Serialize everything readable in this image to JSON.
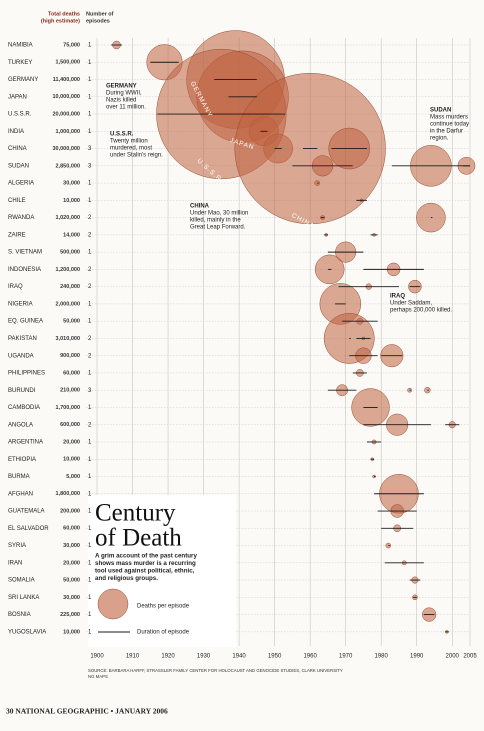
{
  "chart_data": {
    "type": "timeline-bubble",
    "title_lines": [
      "Century",
      "of Death"
    ],
    "subtitle_lines": [
      "A grim account of the past century",
      "shows mass murder is a recurring",
      "tool used against political, ethnic,",
      "and religious groups."
    ],
    "header_deaths": [
      "Total deaths",
      "(high estimate)"
    ],
    "header_episodes": [
      "Number of",
      "episodes"
    ],
    "color": "#c0623f",
    "line_color": "#1a1a1a",
    "label_color": "#8a2a1a",
    "xlim": [
      1900,
      2005
    ],
    "xticks": [
      1900,
      1910,
      1920,
      1930,
      1940,
      1950,
      1960,
      1970,
      1980,
      1990,
      2000,
      2005
    ],
    "grid": true,
    "rows": [
      {
        "name": "NAMIBIA",
        "deaths": 75000,
        "deaths_label": "75,000",
        "episodes_count": 1,
        "episodes": [
          {
            "start": 1904,
            "end": 1907
          }
        ]
      },
      {
        "name": "TURKEY",
        "deaths": 1500000,
        "deaths_label": "1,500,000",
        "episodes_count": 1,
        "episodes": [
          {
            "start": 1915,
            "end": 1923
          }
        ]
      },
      {
        "name": "GERMANY",
        "deaths": 11400000,
        "deaths_label": "11,400,000",
        "episodes_count": 1,
        "episodes": [
          {
            "start": 1933,
            "end": 1945
          }
        ]
      },
      {
        "name": "JAPAN",
        "deaths": 10000000,
        "deaths_label": "10,000,000",
        "episodes_count": 1,
        "episodes": [
          {
            "start": 1937,
            "end": 1945
          }
        ]
      },
      {
        "name": "U.S.S.R.",
        "deaths": 20000000,
        "deaths_label": "20,000,000",
        "episodes_count": 1,
        "episodes": [
          {
            "start": 1917,
            "end": 1953
          }
        ]
      },
      {
        "name": "INDIA",
        "deaths": 1000000,
        "deaths_label": "1,000,000",
        "episodes_count": 1,
        "episodes": [
          {
            "start": 1946,
            "end": 1948
          }
        ]
      },
      {
        "name": "CHINA",
        "deaths": 30000000,
        "deaths_label": "30,000,000",
        "episodes_count": 3,
        "episodes": [
          {
            "start": 1950,
            "end": 1952,
            "deaths": 1000000
          },
          {
            "start": 1958,
            "end": 1962,
            "deaths": 27000000
          },
          {
            "start": 1966,
            "end": 1976,
            "deaths": 2000000
          }
        ]
      },
      {
        "name": "SUDAN",
        "deaths": 2850000,
        "deaths_label": "2,850,000",
        "episodes_count": 3,
        "episodes": [
          {
            "start": 1955,
            "end": 1972,
            "deaths": 500000
          },
          {
            "start": 1983,
            "end": 2005,
            "deaths": 2000000
          },
          {
            "start": 2003,
            "end": 2005,
            "deaths": 350000
          }
        ]
      },
      {
        "name": "ALGERIA",
        "deaths": 30000,
        "deaths_label": "30,000",
        "episodes_count": 1,
        "episodes": [
          {
            "start": 1962,
            "end": 1962
          }
        ]
      },
      {
        "name": "CHILE",
        "deaths": 10000,
        "deaths_label": "10,000",
        "episodes_count": 1,
        "episodes": [
          {
            "start": 1973,
            "end": 1976
          }
        ]
      },
      {
        "name": "RWANDA",
        "deaths": 1020000,
        "deaths_label": "1,020,000",
        "episodes_count": 2,
        "episodes": [
          {
            "start": 1963,
            "end": 1964,
            "deaths": 20000
          },
          {
            "start": 1994,
            "end": 1994,
            "deaths": 1000000
          }
        ]
      },
      {
        "name": "ZAIRE",
        "deaths": 14000,
        "deaths_label": "14,000",
        "episodes_count": 2,
        "episodes": [
          {
            "start": 1964,
            "end": 1965,
            "deaths": 7000
          },
          {
            "start": 1977,
            "end": 1979,
            "deaths": 7000
          }
        ]
      },
      {
        "name": "S. VIETNAM",
        "deaths": 500000,
        "deaths_label": "500,000",
        "episodes_count": 1,
        "episodes": [
          {
            "start": 1965,
            "end": 1975
          }
        ]
      },
      {
        "name": "INDONESIA",
        "deaths": 1200000,
        "deaths_label": "1,200,000",
        "episodes_count": 2,
        "episodes": [
          {
            "start": 1965,
            "end": 1966,
            "deaths": 1000000
          },
          {
            "start": 1975,
            "end": 1992,
            "deaths": 200000
          }
        ]
      },
      {
        "name": "IRAQ",
        "deaths": 240000,
        "deaths_label": "240,000",
        "episodes_count": 2,
        "episodes": [
          {
            "start": 1968,
            "end": 1985,
            "deaths": 40000
          },
          {
            "start": 1988,
            "end": 1991,
            "deaths": 200000
          }
        ]
      },
      {
        "name": "NIGERIA",
        "deaths": 2000000,
        "deaths_label": "2,000,000",
        "episodes_count": 1,
        "episodes": [
          {
            "start": 1967,
            "end": 1970
          }
        ]
      },
      {
        "name": "EQ. GUINEA",
        "deaths": 50000,
        "deaths_label": "50,000",
        "episodes_count": 1,
        "episodes": [
          {
            "start": 1969,
            "end": 1979
          }
        ]
      },
      {
        "name": "PAKISTAN",
        "deaths": 3010000,
        "deaths_label": "3,010,000",
        "episodes_count": 2,
        "episodes": [
          {
            "start": 1971,
            "end": 1971,
            "deaths": 3000000
          },
          {
            "start": 1973,
            "end": 1977,
            "deaths": 10000
          }
        ]
      },
      {
        "name": "UGANDA",
        "deaths": 900000,
        "deaths_label": "900,000",
        "episodes_count": 2,
        "episodes": [
          {
            "start": 1971,
            "end": 1979,
            "deaths": 300000
          },
          {
            "start": 1980,
            "end": 1986,
            "deaths": 600000
          }
        ]
      },
      {
        "name": "PHILIPPINES",
        "deaths": 60000,
        "deaths_label": "60,000",
        "episodes_count": 1,
        "episodes": [
          {
            "start": 1972,
            "end": 1976
          }
        ]
      },
      {
        "name": "BURUNDI",
        "deaths": 210000,
        "deaths_label": "210,000",
        "episodes_count": 3,
        "episodes": [
          {
            "start": 1965,
            "end": 1973,
            "deaths": 150000
          },
          {
            "start": 1988,
            "end": 1988,
            "deaths": 20000
          },
          {
            "start": 1993,
            "end": 1993,
            "deaths": 40000
          }
        ]
      },
      {
        "name": "CAMBODIA",
        "deaths": 1700000,
        "deaths_label": "1,700,000",
        "episodes_count": 1,
        "episodes": [
          {
            "start": 1975,
            "end": 1979
          }
        ]
      },
      {
        "name": "ANGOLA",
        "deaths": 600000,
        "deaths_label": "600,000",
        "episodes_count": 2,
        "episodes": [
          {
            "start": 1975,
            "end": 1994,
            "deaths": 550000
          },
          {
            "start": 1998,
            "end": 2002,
            "deaths": 50000
          }
        ]
      },
      {
        "name": "ARGENTINA",
        "deaths": 20000,
        "deaths_label": "20,000",
        "episodes_count": 1,
        "episodes": [
          {
            "start": 1976,
            "end": 1980
          }
        ]
      },
      {
        "name": "ETHIOPIA",
        "deaths": 10000,
        "deaths_label": "10,000",
        "episodes_count": 1,
        "episodes": [
          {
            "start": 1977,
            "end": 1978
          }
        ]
      },
      {
        "name": "BURMA",
        "deaths": 5000,
        "deaths_label": "5,000",
        "episodes_count": 1,
        "episodes": [
          {
            "start": 1978,
            "end": 1978
          }
        ]
      },
      {
        "name": "AFGHAN",
        "deaths": 1800000,
        "deaths_label": "1,800,000",
        "episodes_count": 1,
        "episodes": [
          {
            "start": 1978,
            "end": 1992
          }
        ]
      },
      {
        "name": "GUATEMALA",
        "deaths": 200000,
        "deaths_label": "200,000",
        "episodes_count": 1,
        "episodes": [
          {
            "start": 1979,
            "end": 1990
          }
        ]
      },
      {
        "name": "EL SALVADOR",
        "deaths": 60000,
        "deaths_label": "60,000",
        "episodes_count": 1,
        "episodes": [
          {
            "start": 1980,
            "end": 1989
          }
        ]
      },
      {
        "name": "SYRIA",
        "deaths": 30000,
        "deaths_label": "30,000",
        "episodes_count": 1,
        "episodes": [
          {
            "start": 1982,
            "end": 1982
          }
        ]
      },
      {
        "name": "IRAN",
        "deaths": 20000,
        "deaths_label": "20,000",
        "episodes_count": 1,
        "episodes": [
          {
            "start": 1981,
            "end": 1992
          }
        ]
      },
      {
        "name": "SOMALIA",
        "deaths": 50000,
        "deaths_label": "50,000",
        "episodes_count": 1,
        "episodes": [
          {
            "start": 1988,
            "end": 1991
          }
        ]
      },
      {
        "name": "SRI LANKA",
        "deaths": 30000,
        "deaths_label": "30,000",
        "episodes_count": 1,
        "episodes": [
          {
            "start": 1989,
            "end": 1990
          }
        ]
      },
      {
        "name": "BOSNIA",
        "deaths": 225000,
        "deaths_label": "225,000",
        "episodes_count": 1,
        "episodes": [
          {
            "start": 1992,
            "end": 1995
          }
        ]
      },
      {
        "name": "YUGOSLAVIA",
        "deaths": 10000,
        "deaths_label": "10,000",
        "episodes_count": 1,
        "episodes": [
          {
            "start": 1998,
            "end": 1999
          }
        ]
      }
    ],
    "annotations": [
      [
        "GERMANY",
        "During WWII,",
        "Nazis killed",
        "over 11 million."
      ],
      [
        "U.S.S.R.",
        "Twenty million",
        "murdered, most",
        "under Stalin's reign."
      ],
      [
        "CHINA",
        "Under Mao, 30 million",
        "killed, mainly in the",
        "Great Leap Forward."
      ],
      [
        "SUDAN",
        "Mass murders",
        "continue today",
        "in the Darfur",
        "region."
      ],
      [
        "IRAQ",
        "Under Saddam,",
        "perhaps 200,000 killed."
      ]
    ],
    "bubble_labels": [
      "GERMANY",
      "JAPAN",
      "U.S.S.R.",
      "CHINA"
    ],
    "legend": {
      "size": "Deaths per episode",
      "duration": "Duration of episode"
    },
    "source": [
      "SOURCE: BARBARA HARFF, STRASSLER FAMILY CENTER FOR HOLOCAUST AND GENOCIDE STUDIES, CLARK UNIVERSITY",
      "NG MAPS"
    ],
    "footer": "30 NATIONAL GEOGRAPHIC • JANUARY 2006"
  }
}
